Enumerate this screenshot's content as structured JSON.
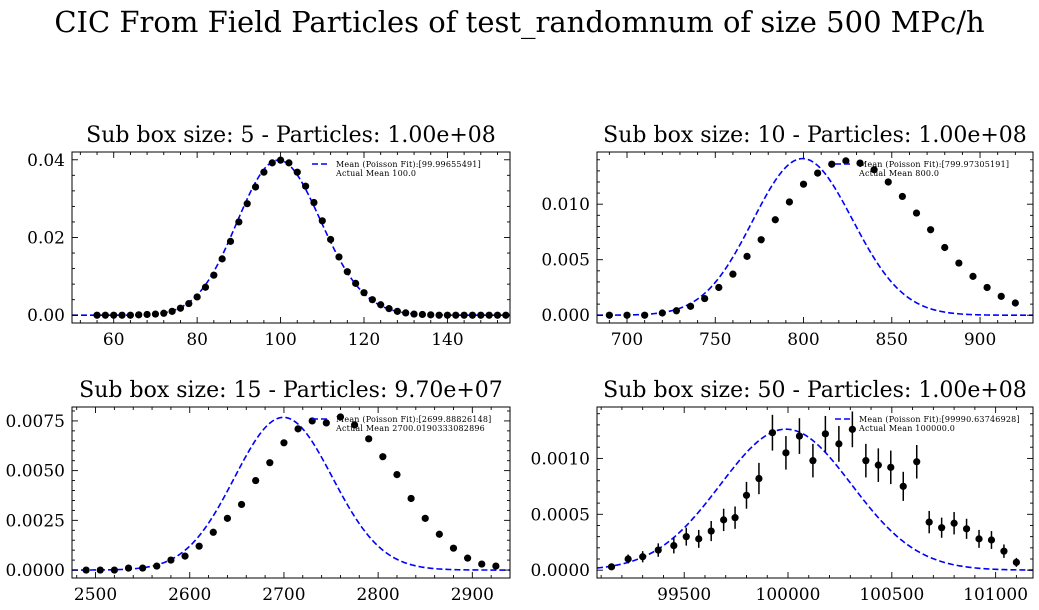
{
  "suptitle": "CIC From Field Particles of test_randomnum of size 500 MPc/h",
  "chart_data": [
    {
      "type": "scatter",
      "title": "Sub box size: 5 - Particles: 1.00e+08",
      "xlabel": "",
      "ylabel": "",
      "xlim": [
        50,
        155
      ],
      "ylim": [
        -0.002,
        0.042
      ],
      "xticks": [
        60,
        80,
        100,
        120,
        140
      ],
      "yticks": [
        0.0,
        0.02,
        0.04
      ],
      "ytick_labels": [
        "0.00",
        "0.02",
        "0.04"
      ],
      "legend_position": "top-right",
      "legend": [
        "Mean (Poisson Fit):[99.99655491]",
        "Actual Mean 100.0"
      ],
      "fit": {
        "type": "poisson",
        "mean": 99.99655491,
        "color": "#0000ff"
      },
      "series": [
        {
          "type": "points",
          "x": [
            56,
            58,
            60,
            62,
            64,
            66,
            68,
            70,
            72,
            74,
            76,
            78,
            80,
            82,
            84,
            86,
            88,
            90,
            92,
            94,
            96,
            98,
            100,
            102,
            104,
            106,
            108,
            110,
            112,
            114,
            116,
            118,
            120,
            122,
            124,
            126,
            128,
            130,
            132,
            134,
            136,
            138,
            140,
            142,
            144,
            146,
            148,
            150,
            152,
            154
          ],
          "y": [
            0,
            0,
            0,
            0,
            0,
            0.0001,
            0.0002,
            0.0003,
            0.0005,
            0.001,
            0.0018,
            0.003,
            0.0047,
            0.0072,
            0.0103,
            0.0145,
            0.019,
            0.024,
            0.0287,
            0.033,
            0.0368,
            0.0392,
            0.0399,
            0.0392,
            0.0368,
            0.0332,
            0.029,
            0.0243,
            0.0195,
            0.015,
            0.0112,
            0.0082,
            0.0058,
            0.004,
            0.0027,
            0.0017,
            0.001,
            0.0006,
            0.0003,
            0.0002,
            0.0001,
            0,
            0,
            0,
            0,
            0,
            0,
            0,
            0,
            0
          ]
        }
      ]
    },
    {
      "type": "scatter",
      "title": "Sub box size: 10 - Particles: 1.00e+08",
      "xlabel": "",
      "ylabel": "",
      "xlim": [
        683,
        930
      ],
      "ylim": [
        -0.0007,
        0.0147
      ],
      "xticks": [
        700,
        750,
        800,
        850,
        900
      ],
      "yticks": [
        0.0,
        0.005,
        0.01
      ],
      "ytick_labels": [
        "0.000",
        "0.005",
        "0.010"
      ],
      "legend_position": "top-right",
      "legend": [
        "Mean (Poisson Fit):[799.97305191]",
        "Actual Mean 800.0"
      ],
      "fit": {
        "type": "poisson",
        "mean": 799.97305191,
        "color": "#0000ff"
      },
      "series": [
        {
          "type": "points",
          "x": [
            690,
            700,
            710,
            720,
            728,
            736,
            744,
            752,
            760,
            768,
            776,
            784,
            792,
            800,
            808,
            816,
            824,
            832,
            840,
            848,
            856,
            864,
            872,
            880,
            888,
            896,
            904,
            912,
            920
          ],
          "y": [
            0,
            0,
            0,
            0.0002,
            0.0004,
            0.0008,
            0.0015,
            0.0025,
            0.0037,
            0.0053,
            0.0068,
            0.0086,
            0.0102,
            0.0118,
            0.0128,
            0.0136,
            0.0139,
            0.0137,
            0.0131,
            0.012,
            0.0107,
            0.0092,
            0.0077,
            0.0061,
            0.0047,
            0.0035,
            0.0025,
            0.0017,
            0.0011
          ]
        }
      ]
    },
    {
      "type": "scatter",
      "title": "Sub box size: 15 - Particles: 9.70e+07",
      "xlabel": "",
      "ylabel": "",
      "xlim": [
        2475,
        2940
      ],
      "ylim": [
        -0.0004,
        0.0082
      ],
      "xticks": [
        2500,
        2600,
        2700,
        2800,
        2900
      ],
      "yticks": [
        0.0,
        0.0025,
        0.005,
        0.0075
      ],
      "ytick_labels": [
        "0.0000",
        "0.0025",
        "0.0050",
        "0.0075"
      ],
      "legend_position": "top-right",
      "legend": [
        "Mean (Poisson Fit):[2699.88826148]",
        "Actual Mean 2700.0190333082896"
      ],
      "fit": {
        "type": "poisson",
        "mean": 2699.88826148,
        "color": "#0000ff"
      },
      "series": [
        {
          "type": "points",
          "x": [
            2490,
            2505,
            2520,
            2535,
            2550,
            2565,
            2580,
            2595,
            2610,
            2625,
            2640,
            2655,
            2670,
            2685,
            2700,
            2715,
            2730,
            2745,
            2760,
            2775,
            2790,
            2805,
            2820,
            2835,
            2850,
            2865,
            2880,
            2895,
            2910,
            2925
          ],
          "y": [
            0,
            0,
            0,
            0.0001,
            0.0001,
            0.0002,
            0.0005,
            0.0007,
            0.0012,
            0.0019,
            0.0026,
            0.0033,
            0.0045,
            0.0054,
            0.0064,
            0.0071,
            0.0075,
            0.0074,
            0.0077,
            0.0073,
            0.0066,
            0.0057,
            0.0048,
            0.0036,
            0.0026,
            0.0018,
            0.0011,
            0.0006,
            0.0003,
            0.0002
          ]
        }
      ]
    },
    {
      "type": "scatter",
      "title": "Sub box size: 50 - Particles: 1.00e+08",
      "xlabel": "",
      "ylabel": "",
      "xlim": [
        99080,
        101180
      ],
      "ylim": [
        -7e-05,
        0.00146
      ],
      "xticks": [
        99500,
        100000,
        100500,
        101000
      ],
      "yticks": [
        0.0,
        0.0005,
        0.001
      ],
      "ytick_labels": [
        "0.0000",
        "0.0005",
        "0.0010"
      ],
      "legend_position": "top-right",
      "legend": [
        "Mean (Poisson Fit):[99990.63746928]",
        "Actual Mean 100000.0"
      ],
      "fit": {
        "type": "poisson",
        "mean": 99990.63746928,
        "color": "#0000ff"
      },
      "series": [
        {
          "type": "errorbar",
          "x": [
            99150,
            99230,
            99300,
            99375,
            99450,
            99510,
            99570,
            99630,
            99690,
            99745,
            99800,
            99860,
            99925,
            99990,
            100055,
            100120,
            100180,
            100245,
            100310,
            100375,
            100435,
            100495,
            100555,
            100620,
            100680,
            100740,
            100800,
            100860,
            100920,
            100980,
            101040,
            101100
          ],
          "y": [
            3e-05,
            0.0001,
            0.00012,
            0.00018,
            0.00022,
            0.0003,
            0.00028,
            0.00035,
            0.00045,
            0.00047,
            0.00067,
            0.00082,
            0.00123,
            0.00105,
            0.0012,
            0.00098,
            0.00122,
            0.00113,
            0.00126,
            0.00098,
            0.00094,
            0.00092,
            0.00075,
            0.00097,
            0.00043,
            0.00038,
            0.00042,
            0.00037,
            0.00028,
            0.00027,
            0.00017,
            7e-05
          ],
          "yerr": [
            3e-05,
            4e-05,
            5e-05,
            6e-05,
            7e-05,
            8e-05,
            8e-05,
            9e-05,
            0.0001,
            0.0001,
            0.00012,
            0.00014,
            0.00016,
            0.00015,
            0.00016,
            0.00015,
            0.00016,
            0.00016,
            0.00016,
            0.00015,
            0.00015,
            0.00015,
            0.00013,
            0.00015,
            0.0001,
            9e-05,
            0.0001,
            9e-05,
            8e-05,
            8e-05,
            6e-05,
            4e-05
          ]
        }
      ]
    }
  ]
}
